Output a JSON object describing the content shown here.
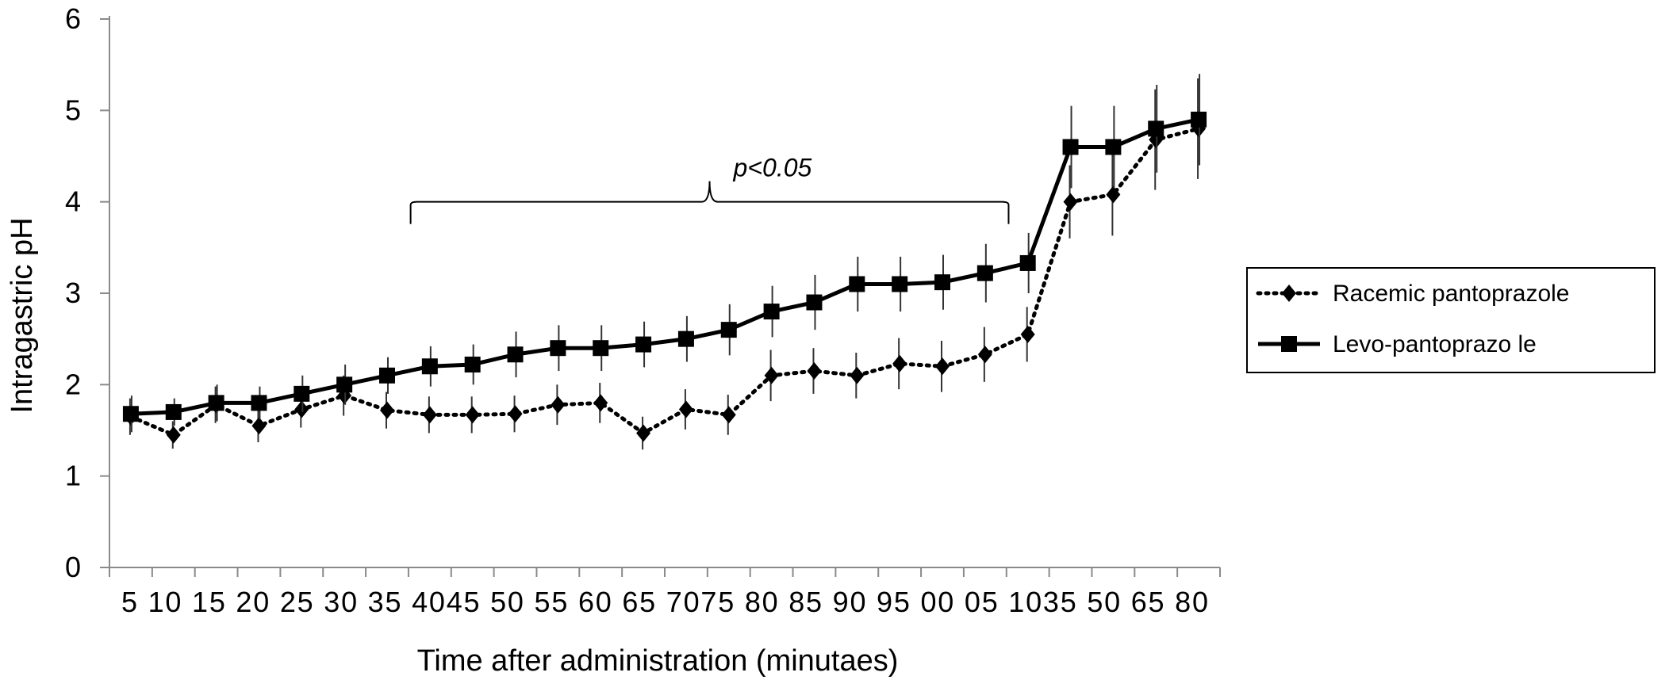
{
  "chart_data": {
    "type": "line",
    "xlabel": "Time after administration (minutaes)",
    "ylabel": "Intragastric pH",
    "ylim": [
      0,
      6
    ],
    "yticks": [
      "0",
      "1",
      "2",
      "3",
      "4",
      "5",
      "6"
    ],
    "grid": false,
    "legend_position": "right",
    "categories": [
      "5",
      "10",
      "15",
      "20",
      "25",
      "30",
      "35",
      "40",
      "45",
      "50",
      "55",
      "60",
      "65",
      "70",
      "75",
      "80",
      "85",
      "90",
      "95",
      "00",
      "05",
      "10",
      "35",
      "50",
      "65",
      "80"
    ],
    "tick_text": [
      "5",
      "10",
      "15",
      "20",
      "25",
      "30",
      "35",
      "4045",
      "50",
      "55",
      "60",
      "65",
      "7075",
      "80",
      "85",
      "90",
      "95",
      "00",
      "05",
      "1035",
      "50",
      "65",
      "80"
    ],
    "series": [
      {
        "name": "Racemic pantoprazole",
        "style": "dotted",
        "marker": "diamond",
        "color": "#000000",
        "values": [
          1.65,
          1.45,
          1.78,
          1.55,
          1.73,
          1.88,
          1.72,
          1.67,
          1.67,
          1.68,
          1.78,
          1.8,
          1.47,
          1.73,
          1.67,
          2.1,
          2.15,
          2.1,
          2.23,
          2.2,
          2.33,
          2.55,
          4.0,
          4.08,
          4.68,
          4.8
        ],
        "errors": [
          0.2,
          0.15,
          0.2,
          0.18,
          0.2,
          0.22,
          0.2,
          0.2,
          0.2,
          0.2,
          0.22,
          0.22,
          0.18,
          0.22,
          0.22,
          0.28,
          0.25,
          0.25,
          0.28,
          0.28,
          0.3,
          0.3,
          0.4,
          0.45,
          0.55,
          0.55
        ]
      },
      {
        "name": "Levo-pantoprazo le",
        "style": "solid",
        "marker": "square",
        "color": "#000000",
        "values": [
          1.68,
          1.7,
          1.8,
          1.8,
          1.9,
          2.0,
          2.1,
          2.2,
          2.22,
          2.33,
          2.4,
          2.4,
          2.44,
          2.5,
          2.6,
          2.8,
          2.9,
          3.1,
          3.1,
          3.12,
          3.22,
          3.33,
          4.6,
          4.6,
          4.8,
          4.9
        ],
        "errors": [
          0.2,
          0.15,
          0.2,
          0.18,
          0.2,
          0.22,
          0.2,
          0.22,
          0.22,
          0.25,
          0.25,
          0.25,
          0.25,
          0.25,
          0.28,
          0.28,
          0.3,
          0.3,
          0.3,
          0.3,
          0.32,
          0.33,
          0.45,
          0.45,
          0.48,
          0.5
        ]
      }
    ],
    "annotations": [
      {
        "text": "p<0.05",
        "type": "bracket",
        "from_category_index": 7,
        "to_category_index": 21,
        "y": 4.0
      }
    ]
  }
}
